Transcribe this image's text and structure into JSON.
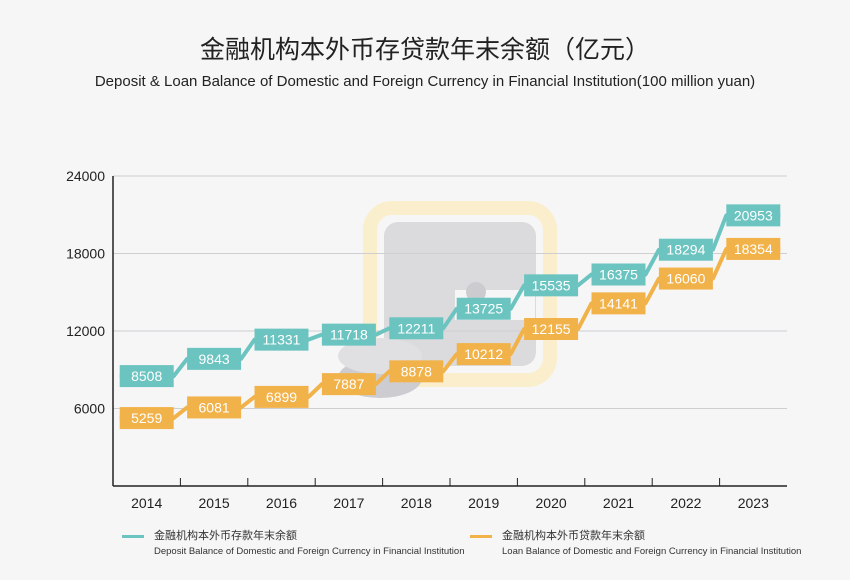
{
  "chart_data": {
    "type": "line",
    "title": "金融机构本外币存贷款年末余额（亿元）",
    "subtitle": "Deposit & Loan Balance of Domestic and Foreign Currency in Financial Institution(100 million yuan)",
    "xlabel": "",
    "ylabel": "",
    "x": [
      "2014",
      "2015",
      "2016",
      "2017",
      "2018",
      "2019",
      "2020",
      "2021",
      "2022",
      "2023"
    ],
    "ylim": [
      0,
      24000
    ],
    "yticks": [
      6000,
      12000,
      18000,
      24000
    ],
    "grid": true,
    "legend_position": "bottom",
    "series": [
      {
        "name": "金融机构本外币存款年末余额",
        "name_en": "Deposit Balance of Domestic and Foreign Currency in Financial Institution",
        "color": "#6cc4c1",
        "values": [
          8508,
          9843,
          11331,
          11718,
          12211,
          13725,
          15535,
          16375,
          18294,
          20953
        ]
      },
      {
        "name": "金融机构本外币贷款年末余额",
        "name_en": "Loan Balance of Domestic and Foreign Currency in Financial Institution",
        "color": "#f2b24a",
        "values": [
          5259,
          6081,
          6899,
          7887,
          8878,
          10212,
          12155,
          14141,
          16060,
          18354
        ]
      }
    ]
  }
}
